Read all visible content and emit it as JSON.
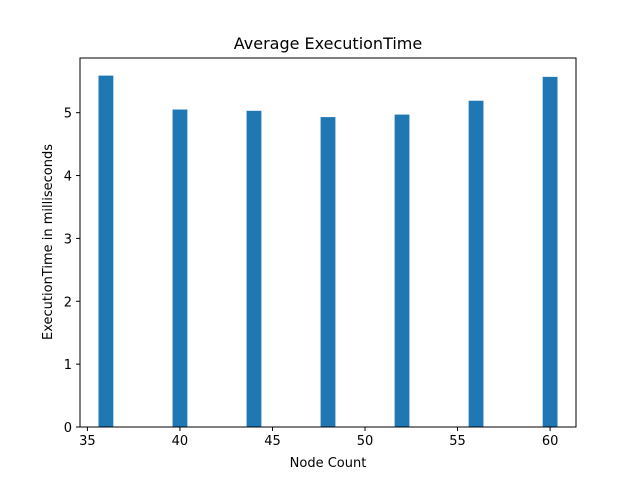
{
  "chart_data": {
    "type": "bar",
    "title": "Average ExecutionTime",
    "xlabel": "Node Count",
    "ylabel": "ExecutionTime in milliseconds",
    "x": [
      36,
      40,
      44,
      48,
      52,
      56,
      60
    ],
    "values": [
      5.59,
      5.05,
      5.03,
      4.93,
      4.97,
      5.19,
      5.57
    ],
    "bar_width": 0.8,
    "xlim": [
      34.6,
      61.4
    ],
    "ylim": [
      0,
      5.87
    ],
    "xticks": [
      35,
      40,
      45,
      50,
      55,
      60
    ],
    "yticks": [
      0,
      1,
      2,
      3,
      4,
      5
    ],
    "grid": false,
    "colors": {
      "bar": "#1f77b4",
      "axis": "#000000",
      "background": "#ffffff"
    }
  }
}
